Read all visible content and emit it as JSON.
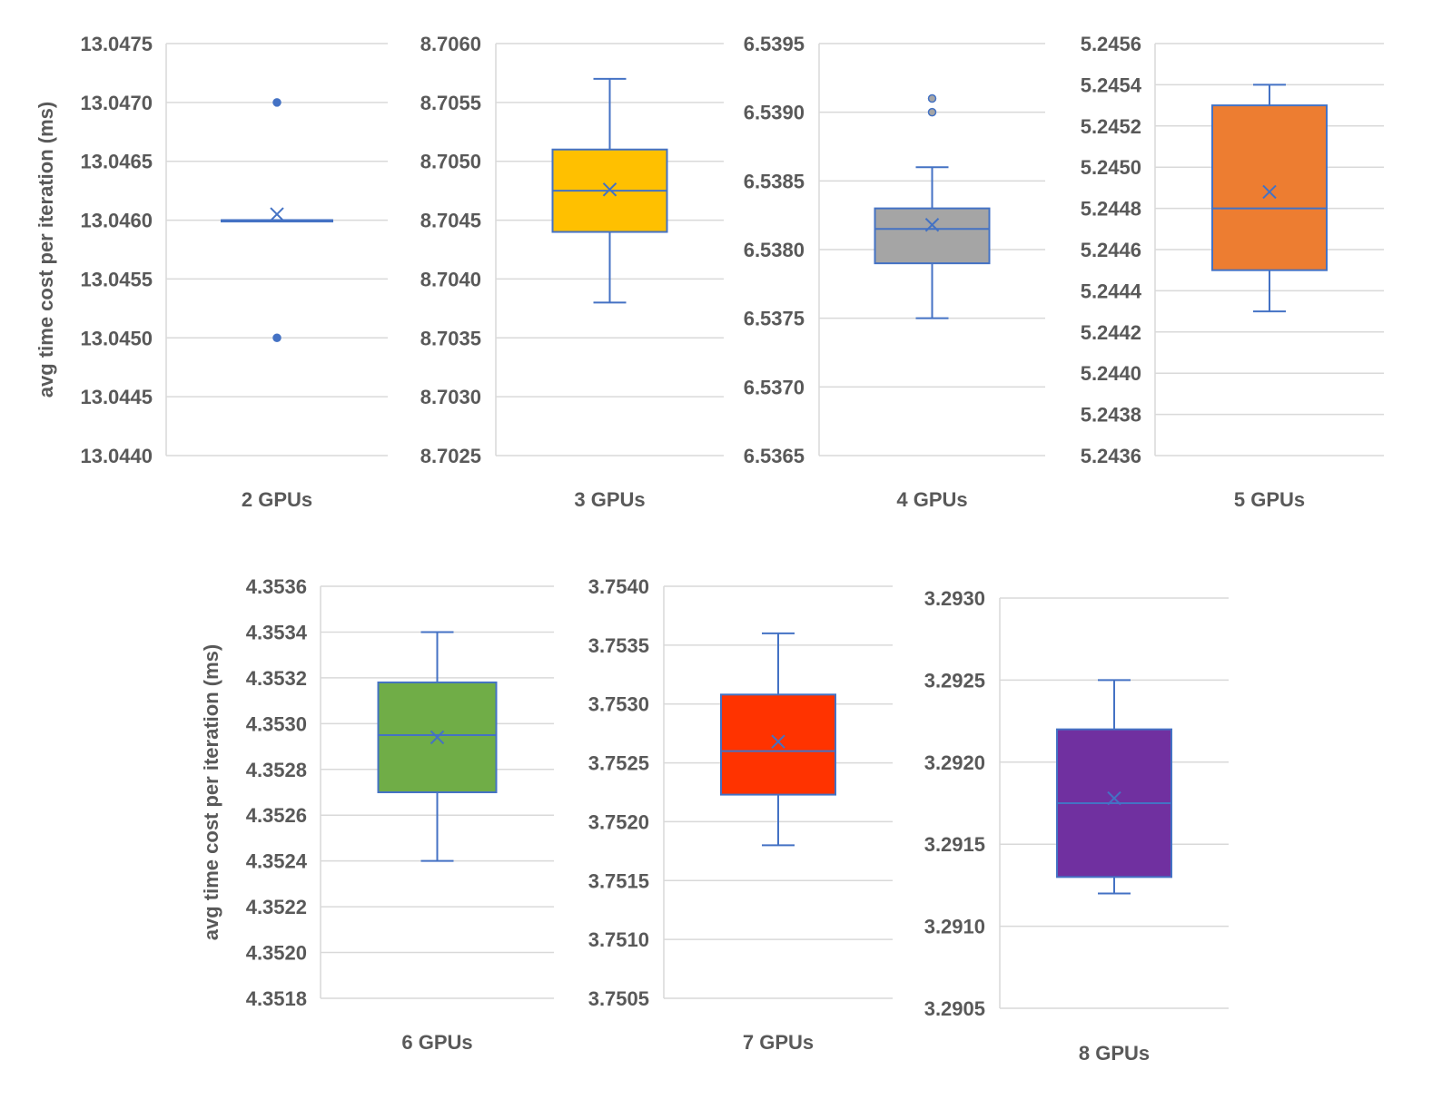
{
  "chart_data": [
    {
      "type": "box",
      "category": "2 GPUs",
      "ylabel": "avg time cost per iteration (ms)",
      "ylim": [
        13.044,
        13.0475
      ],
      "yticks": [
        "13.0440",
        "13.0445",
        "13.0450",
        "13.0455",
        "13.0460",
        "13.0465",
        "13.0470",
        "13.0475"
      ],
      "box": {
        "min": 13.046,
        "q1": 13.046,
        "median": 13.046,
        "q3": 13.046,
        "max": 13.046,
        "mean": 13.04605
      },
      "outliers": [
        13.047,
        13.045
      ],
      "fill": "#4472C4"
    },
    {
      "type": "box",
      "category": "3 GPUs",
      "ylabel": "",
      "ylim": [
        8.7025,
        8.706
      ],
      "yticks": [
        "8.7025",
        "8.7030",
        "8.7035",
        "8.7040",
        "8.7045",
        "8.7050",
        "8.7055",
        "8.7060"
      ],
      "box": {
        "min": 8.7038,
        "q1": 8.7044,
        "median": 8.70475,
        "q3": 8.7051,
        "max": 8.7057,
        "mean": 8.70476
      },
      "outliers": [],
      "fill": "#FFC000"
    },
    {
      "type": "box",
      "category": "4 GPUs",
      "ylabel": "",
      "ylim": [
        6.5365,
        6.5395
      ],
      "yticks": [
        "6.5365",
        "6.5370",
        "6.5375",
        "6.5380",
        "6.5385",
        "6.5390",
        "6.5395"
      ],
      "box": {
        "min": 6.5375,
        "q1": 6.5379,
        "median": 6.53815,
        "q3": 6.5383,
        "max": 6.5386,
        "mean": 6.53818
      },
      "outliers": [
        6.5391,
        6.539
      ],
      "fill": "#A5A5A5"
    },
    {
      "type": "box",
      "category": "5 GPUs",
      "ylabel": "",
      "ylim": [
        5.2436,
        5.2456
      ],
      "yticks": [
        "5.2436",
        "5.2438",
        "5.2440",
        "5.2442",
        "5.2444",
        "5.2446",
        "5.2448",
        "5.2450",
        "5.2452",
        "5.2454",
        "5.2456"
      ],
      "box": {
        "min": 5.2443,
        "q1": 5.2445,
        "median": 5.2448,
        "q3": 5.2453,
        "max": 5.2454,
        "mean": 5.24488
      },
      "outliers": [],
      "fill": "#ED7D31"
    },
    {
      "type": "box",
      "category": "6 GPUs",
      "ylabel": "avg time cost per iteration (ms)",
      "ylim": [
        4.3518,
        4.3536
      ],
      "yticks": [
        "4.3518",
        "4.3520",
        "4.3522",
        "4.3524",
        "4.3526",
        "4.3528",
        "4.3530",
        "4.3532",
        "4.3534",
        "4.3536"
      ],
      "box": {
        "min": 4.3524,
        "q1": 4.3527,
        "median": 4.35295,
        "q3": 4.35318,
        "max": 4.3534,
        "mean": 4.35294
      },
      "outliers": [],
      "fill": "#70AD47"
    },
    {
      "type": "box",
      "category": "7 GPUs",
      "ylabel": "",
      "ylim": [
        3.7505,
        3.754
      ],
      "yticks": [
        "3.7505",
        "3.7510",
        "3.7515",
        "3.7520",
        "3.7525",
        "3.7530",
        "3.7535",
        "3.7540"
      ],
      "box": {
        "min": 3.7518,
        "q1": 3.75223,
        "median": 3.7526,
        "q3": 3.75308,
        "max": 3.7536,
        "mean": 3.75268
      },
      "outliers": [],
      "fill": "#FF3300"
    },
    {
      "type": "box",
      "category": "8 GPUs",
      "ylabel": "",
      "ylim": [
        3.2905,
        3.293
      ],
      "yticks": [
        "3.2905",
        "3.2910",
        "3.2915",
        "3.2920",
        "3.2925",
        "3.2930"
      ],
      "box": {
        "min": 3.2912,
        "q1": 3.2913,
        "median": 3.29175,
        "q3": 3.2922,
        "max": 3.2925,
        "mean": 3.29178
      },
      "outliers": [],
      "fill": "#7030A0"
    }
  ],
  "colors": {
    "stroke": "#4472C4",
    "grid": "#D9D9D9",
    "text": "#595959"
  }
}
